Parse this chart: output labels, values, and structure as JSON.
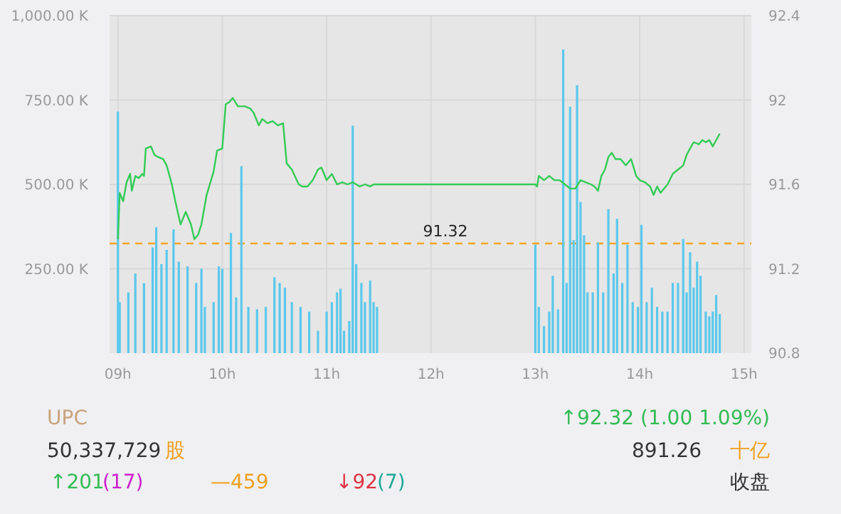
{
  "chart_data": [
    {
      "type": "bar",
      "xlim": [
        8.92,
        15.07
      ],
      "ylim": [
        0,
        1000
      ],
      "y2lim": [
        90.8,
        92.4
      ],
      "grid": true,
      "xticks": [
        {
          "value": 9,
          "label": "09h"
        },
        {
          "value": 10,
          "label": "10h"
        },
        {
          "value": 11,
          "label": "11h"
        },
        {
          "value": 12,
          "label": "12h"
        },
        {
          "value": 13,
          "label": "13h"
        },
        {
          "value": 14,
          "label": "14h"
        },
        {
          "value": 15,
          "label": "15h"
        }
      ],
      "yticks": [
        {
          "value": 250,
          "label": "250.00 K"
        },
        {
          "value": 500,
          "label": "500.00 K"
        },
        {
          "value": 750,
          "label": "750.00 K"
        },
        {
          "value": 1000,
          "label": "1,000.00 K"
        }
      ],
      "y2ticks": [
        90.8,
        91.2,
        91.6,
        {
          "value": 92,
          "label": "92"
        },
        92.4
      ],
      "series": [
        {
          "type": "bar",
          "color": "#5bc8ec",
          "x": [
            9.0,
            9.017,
            9.1,
            9.167,
            9.25,
            9.333,
            9.367,
            9.417,
            9.467,
            9.533,
            9.583,
            9.667,
            9.75,
            9.8,
            9.833,
            9.917,
            9.967,
            10.0,
            10.083,
            10.133,
            10.183,
            10.25,
            10.333,
            10.417,
            10.5,
            10.55,
            10.6,
            10.667,
            10.75,
            10.833,
            10.917,
            11.0,
            11.05,
            11.1,
            11.133,
            11.167,
            11.217,
            11.25,
            11.283,
            11.333,
            11.367,
            11.417,
            11.45,
            11.483,
            13.0,
            13.033,
            13.083,
            13.133,
            13.167,
            13.217,
            13.267,
            13.3,
            13.333,
            13.367,
            13.4,
            13.433,
            13.467,
            13.5,
            13.55,
            13.6,
            13.65,
            13.7,
            13.75,
            13.783,
            13.833,
            13.883,
            13.933,
            13.983,
            14.017,
            14.067,
            14.117,
            14.167,
            14.217,
            14.267,
            14.317,
            14.367,
            14.417,
            14.45,
            14.483,
            14.517,
            14.55,
            14.583,
            14.633,
            14.667,
            14.7,
            14.733,
            14.767
          ],
          "values": [
            716,
            151,
            180,
            236,
            207,
            313,
            373,
            264,
            306,
            367,
            271,
            257,
            208,
            250,
            137,
            151,
            257,
            250,
            356,
            165,
            554,
            137,
            130,
            137,
            225,
            208,
            194,
            151,
            137,
            123,
            66,
            123,
            151,
            180,
            191,
            66,
            95,
            674,
            264,
            208,
            151,
            215,
            151,
            137,
            321,
            137,
            80,
            123,
            229,
            130,
            900,
            208,
            730,
            335,
            794,
            448,
            349,
            180,
            180,
            328,
            180,
            427,
            236,
            398,
            208,
            321,
            151,
            137,
            380,
            151,
            194,
            137,
            123,
            123,
            208,
            208,
            338,
            180,
            299,
            194,
            271,
            229,
            123,
            109,
            123,
            172,
            116
          ]
        },
        {
          "type": "line",
          "axis": "y2",
          "color": "#33cc55",
          "x": [
            9.0,
            9.017,
            9.05,
            9.083,
            9.117,
            9.133,
            9.167,
            9.2,
            9.233,
            9.25,
            9.267,
            9.317,
            9.35,
            9.383,
            9.433,
            9.467,
            9.517,
            9.55,
            9.6,
            9.65,
            9.667,
            9.7,
            9.733,
            9.767,
            9.8,
            9.85,
            9.917,
            9.95,
            10.0,
            10.033,
            10.067,
            10.1,
            10.15,
            10.217,
            10.267,
            10.3,
            10.35,
            10.383,
            10.433,
            10.483,
            10.533,
            10.583,
            10.617,
            10.667,
            10.733,
            10.767,
            10.817,
            10.867,
            10.917,
            10.95,
            11.0,
            11.05,
            11.1,
            11.15,
            11.2,
            11.25,
            11.317,
            11.367,
            11.417,
            11.45,
            13.0,
            13.017,
            13.033,
            13.083,
            13.133,
            13.183,
            13.233,
            13.283,
            13.333,
            13.383,
            13.433,
            13.483,
            13.533,
            13.567,
            13.6,
            13.633,
            13.667,
            13.7,
            13.733,
            13.767,
            13.817,
            13.867,
            13.917,
            13.967,
            14.0,
            14.05,
            14.1,
            14.133,
            14.167,
            14.2,
            14.233,
            14.267,
            14.317,
            14.367,
            14.417,
            14.45,
            14.483,
            14.517,
            14.567,
            14.6,
            14.633,
            14.667,
            14.7,
            14.733,
            14.767
          ],
          "values": [
            91.34,
            91.56,
            91.52,
            91.61,
            91.65,
            91.57,
            91.64,
            91.63,
            91.65,
            91.64,
            91.77,
            91.78,
            91.74,
            91.73,
            91.72,
            91.69,
            91.6,
            91.52,
            91.41,
            91.47,
            91.45,
            91.41,
            91.34,
            91.36,
            91.41,
            91.55,
            91.66,
            91.76,
            91.77,
            91.98,
            91.99,
            92.01,
            91.97,
            91.97,
            91.96,
            91.94,
            91.88,
            91.91,
            91.89,
            91.9,
            91.88,
            91.89,
            91.7,
            91.67,
            91.6,
            91.59,
            91.59,
            91.62,
            91.67,
            91.68,
            91.62,
            91.65,
            91.6,
            91.61,
            91.6,
            91.61,
            91.59,
            91.6,
            91.59,
            91.6,
            91.6,
            91.59,
            91.64,
            91.62,
            91.64,
            91.62,
            91.62,
            91.6,
            91.58,
            91.58,
            91.62,
            91.61,
            91.6,
            91.59,
            91.57,
            91.64,
            91.67,
            91.73,
            91.75,
            91.72,
            91.72,
            91.69,
            91.72,
            91.64,
            91.62,
            91.61,
            91.59,
            91.55,
            91.59,
            91.56,
            91.58,
            91.6,
            91.65,
            91.67,
            91.69,
            91.74,
            91.77,
            91.8,
            91.79,
            91.81,
            91.8,
            91.81,
            91.78,
            91.81,
            91.84
          ]
        }
      ],
      "ref_lines": [
        {
          "axis": "y2",
          "value": 91.32,
          "label": "91.32",
          "color": "#f5a623",
          "line_style": "dashed"
        }
      ]
    },
    {
      "type": "other",
      "annotations": [
        "UPC",
        "↑92.32  (1.00  1.09%)",
        "50,337,729",
        "股",
        "891.26",
        "十亿",
        "↑201",
        "(17)",
        "—459",
        "↓92",
        "(7)",
        "收盘"
      ],
      "colors": [
        "#c8a27a",
        "#33bb55",
        "#333333",
        "#f0a020",
        "#333333",
        "#f0a020",
        "#33bb55",
        "#cc22cc",
        "#f0a020",
        "#dd3344",
        "#22aa99",
        "#333333"
      ]
    }
  ]
}
